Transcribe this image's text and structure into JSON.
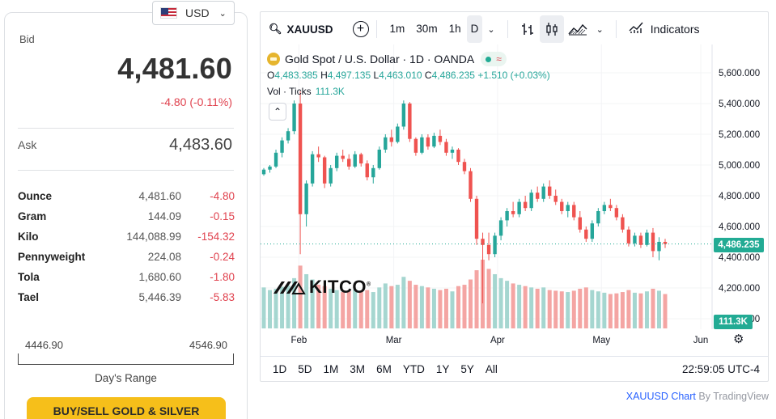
{
  "currency": {
    "code": "USD",
    "flag_icon": "us-flag-icon",
    "chevron_icon": "chevron-down-icon"
  },
  "quote": {
    "bid_label": "Bid",
    "bid": "4,481.60",
    "bid_change": "-4.80 (-0.11%)",
    "ask_label": "Ask",
    "ask": "4,483.60",
    "units": [
      {
        "name": "Ounce",
        "value": "4,481.60",
        "change": "-4.80"
      },
      {
        "name": "Gram",
        "value": "144.09",
        "change": "-0.15"
      },
      {
        "name": "Kilo",
        "value": "144,088.99",
        "change": "-154.32"
      },
      {
        "name": "Pennyweight",
        "value": "224.08",
        "change": "-0.24"
      },
      {
        "name": "Tola",
        "value": "1,680.60",
        "change": "-1.80"
      },
      {
        "name": "Tael",
        "value": "5,446.39",
        "change": "-5.83"
      }
    ],
    "range_low": "4446.90",
    "range_high": "4546.90",
    "range_label": "Day's Range",
    "buy_button": "BUY/SELL GOLD & SILVER"
  },
  "chart_toolbar": {
    "symbol": "XAUUSD",
    "intervals": [
      "1m",
      "30m",
      "1h",
      "D"
    ],
    "active_interval": "D",
    "indicators_label": "Indicators"
  },
  "chart_legend": {
    "title": "Gold Spot / U.S. Dollar · 1D · OANDA",
    "wave": "≈",
    "o_key": "O",
    "o_val": "4,483.385",
    "h_key": "H",
    "h_val": "4,497.135",
    "l_key": "L",
    "l_val": "4,463.010",
    "c_key": "C",
    "c_val": "4,486.235",
    "change": "+1.510 (+0.03%)",
    "vol_label": "Vol · Ticks",
    "vol_value": "111.3K",
    "collapse_icon": "chevron-up-icon"
  },
  "chart_tags": {
    "last_price": "4,486.235",
    "last_volume": "111.3K"
  },
  "watermark": {
    "text": "KITCO",
    "registered": "®"
  },
  "chart_bottom": {
    "ranges": [
      "1D",
      "5D",
      "1M",
      "3M",
      "6M",
      "YTD",
      "1Y",
      "5Y",
      "All"
    ],
    "clock": "22:59:05 UTC-4"
  },
  "attribution": {
    "symbol_link": "XAUUSD Chart",
    "by": "By TradingView"
  },
  "colors": {
    "up": "#26a69a",
    "down": "#ef5350",
    "accent": "#f6bf1a",
    "negative_text": "#e0424e"
  },
  "chart_data": {
    "type": "candlestick",
    "y_ticks": [
      "5,600.000",
      "5,400.000",
      "5,200.000",
      "5,000.000",
      "4,800.000",
      "4,600.000",
      "4,400.000",
      "4,200.000",
      "4,000.000"
    ],
    "y_tick_values": [
      5600,
      5400,
      5200,
      5000,
      4800,
      4600,
      4400,
      4200,
      4000
    ],
    "x_labels": [
      "Feb",
      "Mar",
      "Apr",
      "May",
      "Jun"
    ],
    "x_label_positions": [
      8.5,
      29.5,
      52.5,
      75.5,
      97.5
    ],
    "candles": [
      [
        4940,
        4980,
        4930,
        4970,
        62
      ],
      [
        4970,
        5000,
        4950,
        4990,
        58
      ],
      [
        4990,
        5100,
        4980,
        5080,
        60
      ],
      [
        5080,
        5180,
        5050,
        5160,
        63
      ],
      [
        5160,
        5240,
        5140,
        5220,
        65
      ],
      [
        5220,
        5420,
        5200,
        5400,
        76
      ],
      [
        5400,
        5480,
        4420,
        4680,
        95
      ],
      [
        4680,
        4900,
        4600,
        4880,
        82
      ],
      [
        4880,
        5090,
        4860,
        5070,
        74
      ],
      [
        5070,
        5120,
        5020,
        5050,
        66
      ],
      [
        5050,
        5060,
        4850,
        4880,
        64
      ],
      [
        4880,
        5000,
        4860,
        4980,
        60
      ],
      [
        4980,
        5080,
        4960,
        5060,
        58
      ],
      [
        5060,
        5100,
        5020,
        5040,
        55
      ],
      [
        5040,
        5070,
        4970,
        4990,
        57
      ],
      [
        4990,
        5090,
        4980,
        5070,
        59
      ],
      [
        5070,
        5080,
        4990,
        5010,
        56
      ],
      [
        5010,
        5030,
        4900,
        4920,
        58
      ],
      [
        4920,
        5000,
        4880,
        4980,
        55
      ],
      [
        4980,
        5120,
        4970,
        5100,
        62
      ],
      [
        5100,
        5200,
        5080,
        5180,
        68
      ],
      [
        5180,
        5230,
        5120,
        5150,
        64
      ],
      [
        5150,
        5270,
        5140,
        5250,
        66
      ],
      [
        5250,
        5420,
        5230,
        5400,
        78
      ],
      [
        5400,
        5410,
        5150,
        5170,
        72
      ],
      [
        5170,
        5180,
        5060,
        5080,
        66
      ],
      [
        5080,
        5200,
        5070,
        5180,
        64
      ],
      [
        5180,
        5200,
        5100,
        5120,
        62
      ],
      [
        5120,
        5210,
        5110,
        5190,
        60
      ],
      [
        5190,
        5230,
        5130,
        5150,
        58
      ],
      [
        5150,
        5170,
        5060,
        5080,
        60
      ],
      [
        5080,
        5120,
        5040,
        5100,
        56
      ],
      [
        5100,
        5110,
        5000,
        5020,
        64
      ],
      [
        5020,
        5040,
        4940,
        4960,
        66
      ],
      [
        4960,
        4980,
        4760,
        4780,
        74
      ],
      [
        4780,
        4800,
        4480,
        4520,
        88
      ],
      [
        4520,
        4560,
        4100,
        4480,
        104
      ],
      [
        4480,
        4560,
        4380,
        4420,
        90
      ],
      [
        4420,
        4560,
        4400,
        4540,
        82
      ],
      [
        4540,
        4660,
        4510,
        4640,
        76
      ],
      [
        4640,
        4720,
        4600,
        4700,
        72
      ],
      [
        4700,
        4760,
        4660,
        4680,
        68
      ],
      [
        4680,
        4780,
        4660,
        4760,
        66
      ],
      [
        4760,
        4800,
        4700,
        4720,
        64
      ],
      [
        4720,
        4840,
        4700,
        4820,
        62
      ],
      [
        4820,
        4860,
        4760,
        4780,
        60
      ],
      [
        4780,
        4880,
        4760,
        4860,
        62
      ],
      [
        4860,
        4900,
        4780,
        4800,
        58
      ],
      [
        4800,
        4840,
        4740,
        4760,
        57
      ],
      [
        4760,
        4780,
        4680,
        4700,
        56
      ],
      [
        4700,
        4760,
        4660,
        4740,
        55
      ],
      [
        4740,
        4760,
        4640,
        4660,
        57
      ],
      [
        4660,
        4700,
        4560,
        4580,
        60
      ],
      [
        4580,
        4600,
        4500,
        4520,
        62
      ],
      [
        4520,
        4640,
        4500,
        4620,
        58
      ],
      [
        4620,
        4720,
        4600,
        4700,
        56
      ],
      [
        4700,
        4760,
        4680,
        4740,
        54
      ],
      [
        4740,
        4780,
        4700,
        4720,
        52
      ],
      [
        4720,
        4740,
        4640,
        4660,
        53
      ],
      [
        4660,
        4680,
        4560,
        4580,
        55
      ],
      [
        4580,
        4600,
        4470,
        4490,
        58
      ],
      [
        4490,
        4560,
        4470,
        4540,
        54
      ],
      [
        4540,
        4560,
        4460,
        4480,
        53
      ],
      [
        4480,
        4580,
        4470,
        4560,
        56
      ],
      [
        4560,
        4590,
        4400,
        4440,
        60
      ],
      [
        4440,
        4530,
        4380,
        4500,
        57
      ],
      [
        4500,
        4520,
        4460,
        4486,
        52
      ]
    ],
    "last_price": 4486.235,
    "last_volume": "111.3K"
  }
}
